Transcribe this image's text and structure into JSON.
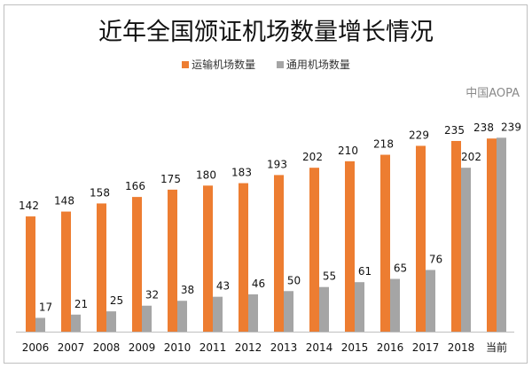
{
  "chart_data": {
    "type": "bar",
    "title": "近年全国颁证机场数量增长情况",
    "categories": [
      "2006",
      "2007",
      "2008",
      "2009",
      "2010",
      "2011",
      "2012",
      "2013",
      "2014",
      "2015",
      "2016",
      "2017",
      "2018",
      "当前"
    ],
    "series": [
      {
        "name": "运输机场数量",
        "color": "#ed7d31",
        "values": [
          142,
          148,
          158,
          166,
          175,
          180,
          183,
          193,
          202,
          210,
          218,
          229,
          235,
          238
        ]
      },
      {
        "name": "通用机场数量",
        "color": "#a5a5a5",
        "values": [
          17,
          21,
          25,
          32,
          38,
          43,
          46,
          50,
          55,
          61,
          65,
          76,
          202,
          239
        ]
      }
    ],
    "ylim": [
      0,
      260
    ],
    "grid": false,
    "legend_position": "top",
    "data_labels": true
  },
  "watermark": "中国AOPA"
}
